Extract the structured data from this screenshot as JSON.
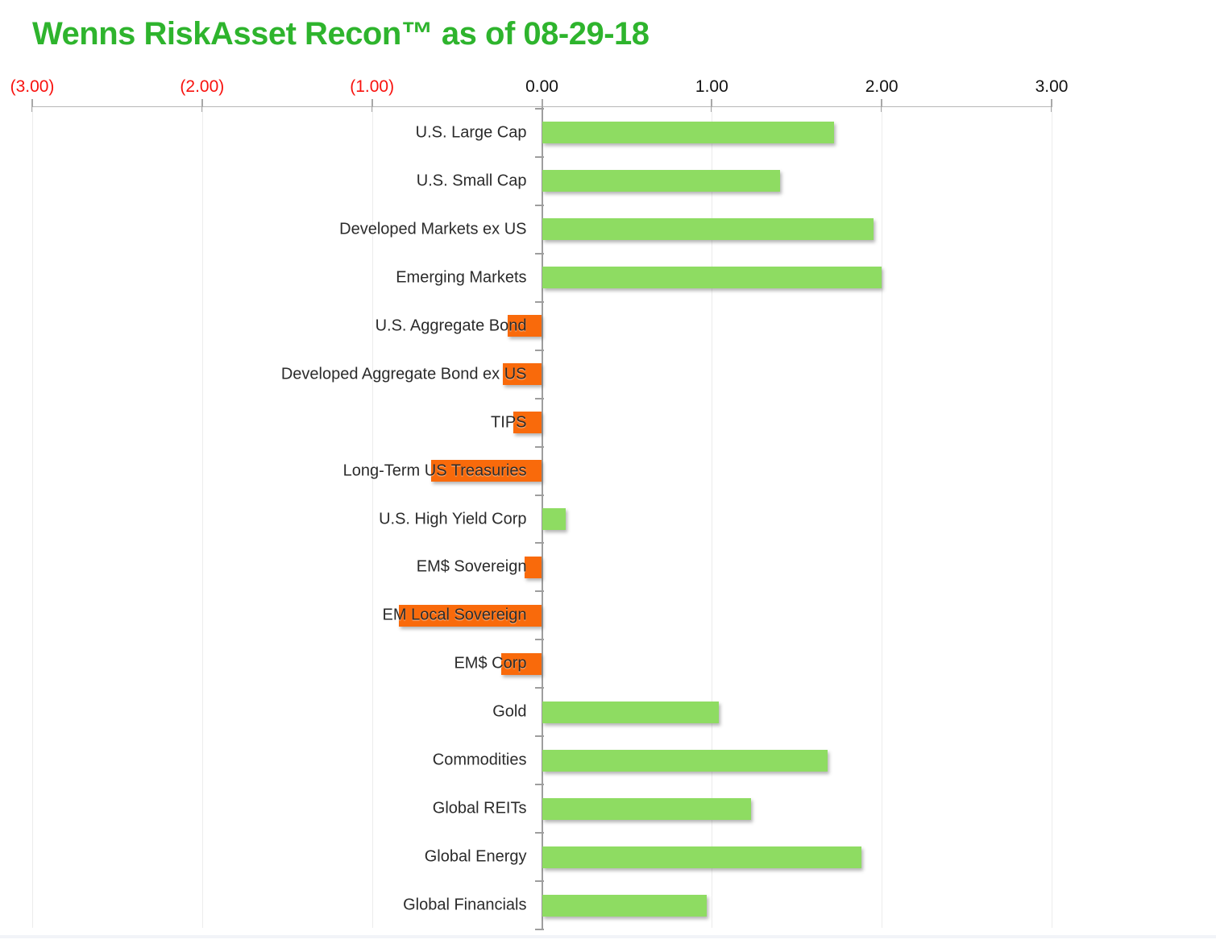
{
  "title": "Wenns RiskAsset Recon™ as of 08-29-18",
  "colors": {
    "title_green": "#2eb42d",
    "positive_bar": "#8edc62",
    "negative_bar": "#f96a0b",
    "negative_axis_label_red": "#f8120e",
    "axis_label_black": "#121212",
    "category_label": "#2b2b2b",
    "zero_axis_gray": "#9e9e9e",
    "gridline_gray": "#ececec"
  },
  "chart_data": {
    "type": "bar",
    "orientation": "horizontal",
    "title": "Wenns RiskAsset Recon™ as of 08-29-18",
    "xlabel": "",
    "ylabel": "",
    "xlim": [
      -3,
      3
    ],
    "grid": true,
    "legend": "none",
    "categories": [
      "U.S. Large Cap",
      "U.S. Small Cap",
      "Developed Markets ex US",
      "Emerging Markets",
      "U.S. Aggregate Bond",
      "Developed Aggregate Bond ex US",
      "TIPS",
      "Long-Term US Treasuries",
      "U.S. High Yield Corp",
      "EM$ Sovereign",
      "EM Local Sovereign",
      "EM$ Corp",
      "Gold",
      "Commodities",
      "Global REITs",
      "Global Energy",
      "Global Financials"
    ],
    "values": [
      1.72,
      1.4,
      1.95,
      2.0,
      -0.2,
      -0.23,
      -0.17,
      -0.65,
      0.14,
      -0.1,
      -0.84,
      -0.24,
      1.04,
      1.68,
      1.23,
      1.88,
      0.97
    ],
    "x_ticks": [
      {
        "label": "(3.00)",
        "value": -3,
        "negative": true
      },
      {
        "label": "(2.00)",
        "value": -2,
        "negative": true
      },
      {
        "label": "(1.00)",
        "value": -1,
        "negative": true
      },
      {
        "label": "0.00",
        "value": 0,
        "negative": false
      },
      {
        "label": "1.00",
        "value": 1,
        "negative": false
      },
      {
        "label": "2.00",
        "value": 2,
        "negative": false
      },
      {
        "label": "3.00",
        "value": 3,
        "negative": false
      }
    ]
  }
}
